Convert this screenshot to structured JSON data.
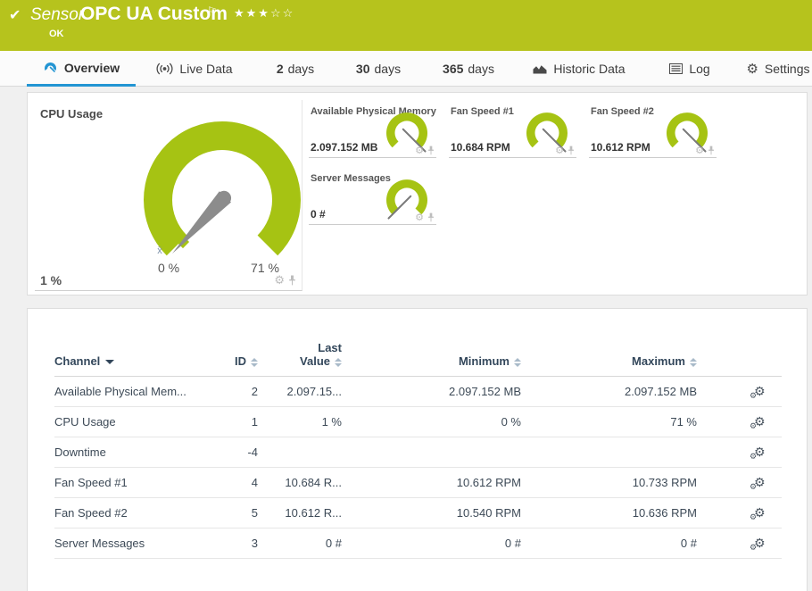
{
  "colors": {
    "brand_green": "#b6c31d",
    "gauge_green": "#a6c313",
    "accent_blue": "#2395d3"
  },
  "header": {
    "kind": "Sensor",
    "title": "OPC UA Custom",
    "status": "OK",
    "check_glyph": "✔",
    "flag_glyph": "⚐",
    "stars_filled": "★★★",
    "stars_empty": "☆☆"
  },
  "tabs": [
    {
      "label": "Overview",
      "active": true
    },
    {
      "label": "Live Data"
    },
    {
      "num": "2",
      "label": "days"
    },
    {
      "num": "30",
      "label": "days"
    },
    {
      "num": "365",
      "label": "days"
    },
    {
      "label": "Historic Data"
    },
    {
      "label": "Log"
    },
    {
      "label": "Settings"
    }
  ],
  "gauges": {
    "primary": {
      "title": "CPU Usage",
      "value": "1 %",
      "scale_min": "0 %",
      "scale_max": "71 %",
      "mean_marker": "x̄",
      "needle_angle": 133
    },
    "small": [
      {
        "title": "Available Physical Memory",
        "value": "2.097.152 MB",
        "needle_angle": 45
      },
      {
        "title": "Fan Speed #1",
        "value": "10.684 RPM",
        "needle_angle": 45
      },
      {
        "title": "Fan Speed #2",
        "value": "10.612 RPM",
        "needle_angle": 45
      },
      {
        "title": "Server Messages",
        "value": "0 #",
        "needle_angle": 135
      }
    ]
  },
  "table": {
    "headers": {
      "channel": "Channel",
      "id": "ID",
      "last_line1": "Last",
      "last_line2": "Value",
      "min": "Minimum",
      "max": "Maximum"
    },
    "rows": [
      {
        "channel": "Available Physical Mem...",
        "id": "2",
        "last": "2.097.15...",
        "min": "2.097.152 MB",
        "max": "2.097.152 MB"
      },
      {
        "channel": "CPU Usage",
        "id": "1",
        "last": "1 %",
        "min": "0 %",
        "max": "71 %"
      },
      {
        "channel": "Downtime",
        "id": "-4",
        "last": "",
        "min": "",
        "max": ""
      },
      {
        "channel": "Fan Speed #1",
        "id": "4",
        "last": "10.684 R...",
        "min": "10.612 RPM",
        "max": "10.733 RPM"
      },
      {
        "channel": "Fan Speed #2",
        "id": "5",
        "last": "10.612 R...",
        "min": "10.540 RPM",
        "max": "10.636 RPM"
      },
      {
        "channel": "Server Messages",
        "id": "3",
        "last": "0 #",
        "min": "0 #",
        "max": "0 #"
      }
    ]
  }
}
